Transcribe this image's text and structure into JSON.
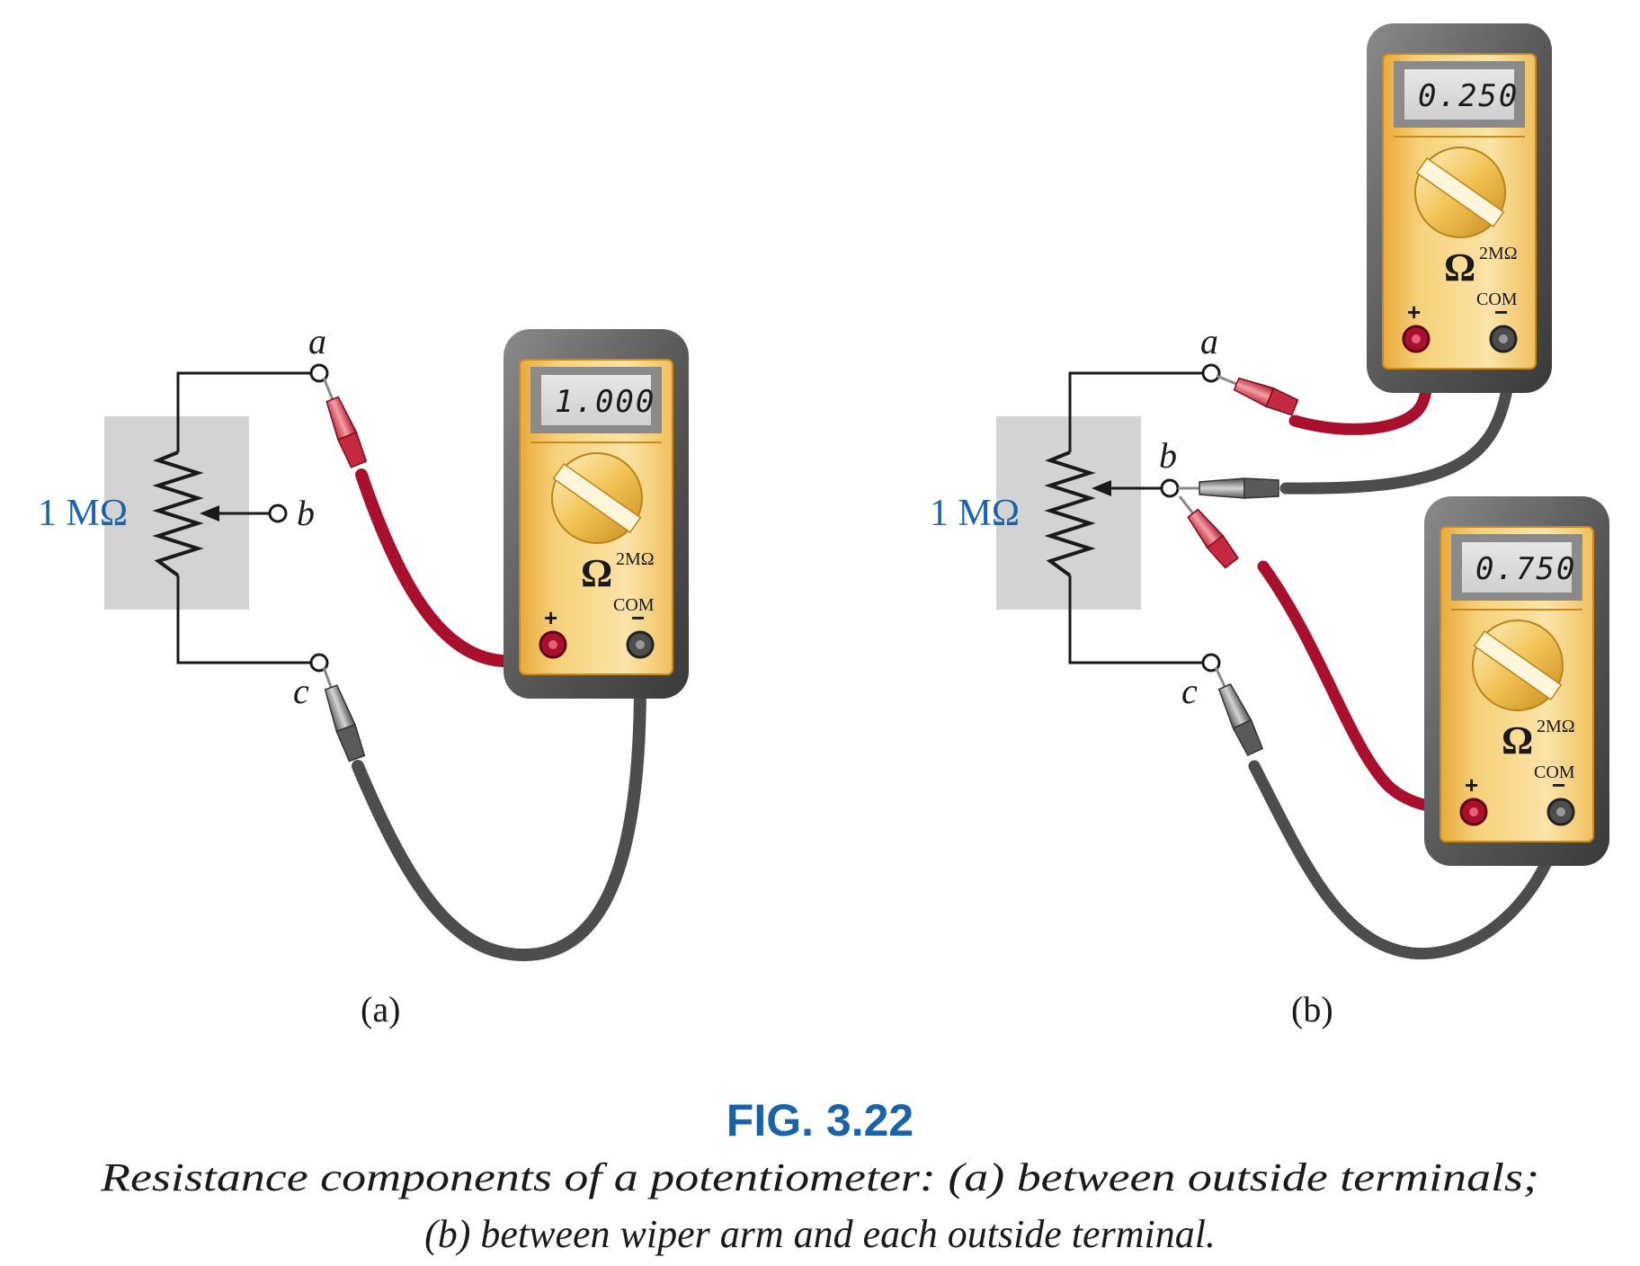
{
  "panel_a": {
    "resistor_label": "1 MΩ",
    "terminal_a": "a",
    "terminal_b": "b",
    "terminal_c": "c",
    "sublabel": "(a)",
    "meter": {
      "display": "1.000",
      "symbol": "Ω",
      "range": "2MΩ",
      "plus": "+",
      "minus": "−",
      "com": "COM"
    }
  },
  "panel_b": {
    "resistor_label": "1 MΩ",
    "terminal_a": "a",
    "terminal_b": "b",
    "terminal_c": "c",
    "sublabel": "(b)",
    "meter_top": {
      "display": "0.250",
      "symbol": "Ω",
      "range": "2MΩ",
      "plus": "+",
      "minus": "−",
      "com": "COM"
    },
    "meter_bottom": {
      "display": "0.750",
      "symbol": "Ω",
      "range": "2MΩ",
      "plus": "+",
      "minus": "−",
      "com": "COM"
    }
  },
  "caption": {
    "title": "FIG. 3.22",
    "line1": "Resistance components of a potentiometer: (a) between outside terminals;",
    "line2": "(b) between wiper arm and each outside terminal."
  },
  "colors": {
    "resistor_label": "#1b63a9",
    "figure_title": "#1b63a9",
    "red_lead": "#a8102e",
    "black_lead": "#4d4d4d",
    "meter_body": "#f5c96a",
    "meter_case": "#555555"
  }
}
